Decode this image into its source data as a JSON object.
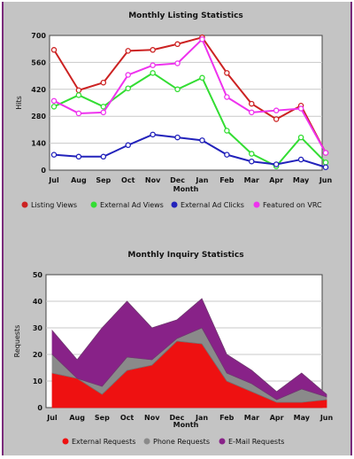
{
  "colors": {
    "panel": "#c4c4c4",
    "frame": "#7a2a7a",
    "plot_bg": "#ffffff",
    "grid": "#c8c8c8"
  },
  "chart_data": [
    {
      "type": "line",
      "title": "Monthly Listing Statistics",
      "xlabel": "Month",
      "ylabel": "Hits",
      "categories": [
        "Jul",
        "Aug",
        "Sep",
        "Oct",
        "Nov",
        "Dec",
        "Jan",
        "Feb",
        "Mar",
        "Apr",
        "May",
        "Jun"
      ],
      "ylim": [
        0,
        700
      ],
      "yticks": [
        0,
        140,
        280,
        420,
        560,
        700
      ],
      "grid": true,
      "legend_position": "bottom",
      "series": [
        {
          "name": "Listing Views",
          "color": "#cc2222",
          "values": [
            625,
            415,
            455,
            620,
            625,
            655,
            690,
            505,
            345,
            265,
            335,
            90
          ]
        },
        {
          "name": "External Ad Views",
          "color": "#33dd33",
          "values": [
            330,
            390,
            330,
            425,
            505,
            420,
            480,
            205,
            85,
            20,
            170,
            40
          ]
        },
        {
          "name": "External Ad Clicks",
          "color": "#2222bb",
          "values": [
            80,
            70,
            70,
            130,
            185,
            170,
            155,
            80,
            45,
            30,
            55,
            15
          ]
        },
        {
          "name": "Featured on VRC",
          "color": "#ee33ee",
          "values": [
            360,
            295,
            300,
            495,
            545,
            555,
            680,
            380,
            300,
            310,
            320,
            90
          ]
        }
      ]
    },
    {
      "type": "area",
      "stacked": true,
      "title": "Monthly Inquiry Statistics",
      "xlabel": "Month",
      "ylabel": "Requests",
      "categories": [
        "Jul",
        "Aug",
        "Sep",
        "Oct",
        "Nov",
        "Dec",
        "Jan",
        "Feb",
        "Mar",
        "Apr",
        "May",
        "Jun"
      ],
      "ylim": [
        0,
        50
      ],
      "yticks": [
        0,
        10,
        20,
        30,
        40,
        50
      ],
      "grid": true,
      "legend_position": "bottom",
      "series": [
        {
          "name": "External Requests",
          "color": "#ee1111",
          "values": [
            13,
            11,
            5,
            14,
            16,
            25,
            24,
            10,
            6,
            2,
            2,
            3
          ]
        },
        {
          "name": "Phone Requests",
          "color": "#8a8a8a",
          "values": [
            7,
            0,
            3,
            5,
            2,
            1,
            6,
            3,
            3,
            1,
            5,
            1
          ]
        },
        {
          "name": "E-Mail Requests",
          "color": "#882288",
          "values": [
            9,
            7,
            22,
            21,
            12,
            7,
            11,
            7,
            5,
            3,
            6,
            1
          ]
        }
      ]
    }
  ]
}
